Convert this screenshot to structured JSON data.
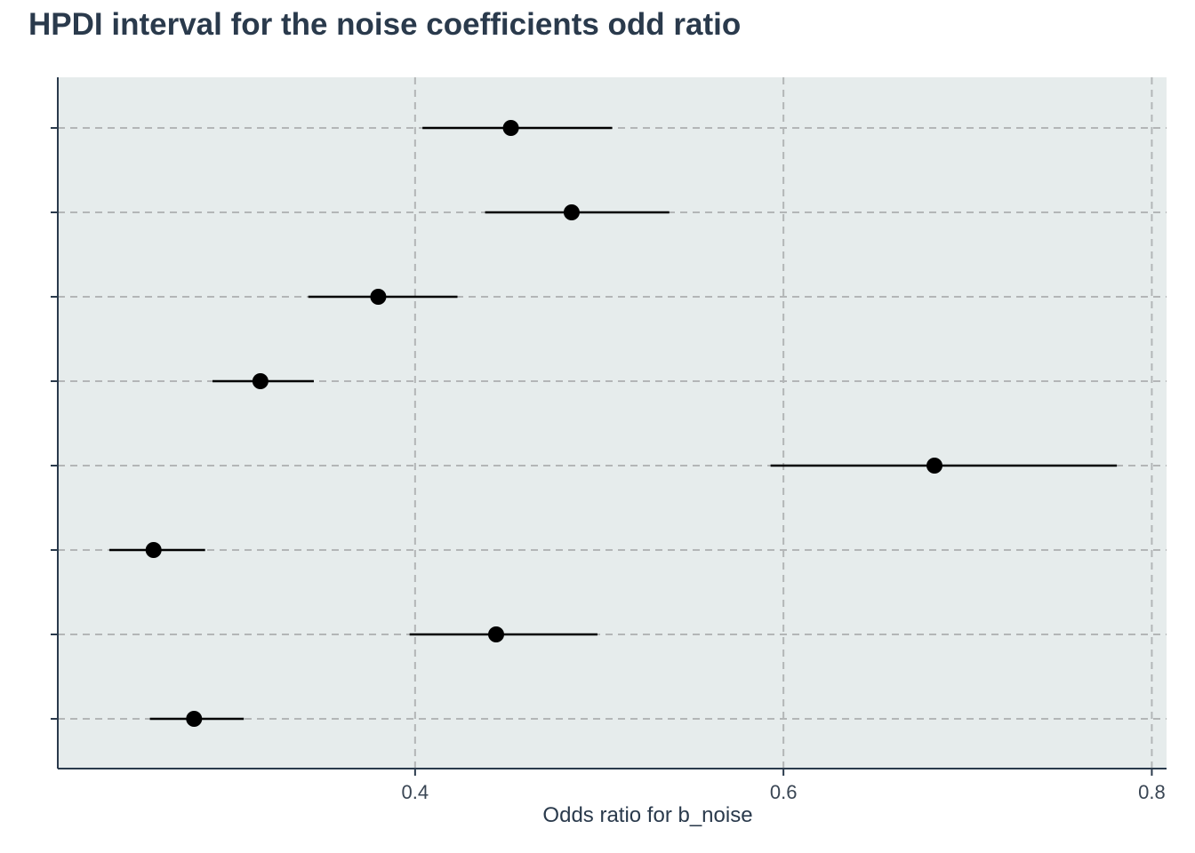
{
  "chart_data": {
    "type": "interval",
    "title": "HPDI interval for the noise coefficients odd ratio",
    "xlabel": "Odds ratio for b_noise",
    "ylabel": "",
    "xlim": [
      0.206,
      0.808
    ],
    "xticks": [
      0.4,
      0.6,
      0.8
    ],
    "xtick_labels": [
      "0.4",
      "0.6",
      "0.8"
    ],
    "grid": "dashed",
    "rows": [
      {
        "point": 0.452,
        "lower": 0.404,
        "upper": 0.507
      },
      {
        "point": 0.485,
        "lower": 0.438,
        "upper": 0.538
      },
      {
        "point": 0.38,
        "lower": 0.342,
        "upper": 0.423
      },
      {
        "point": 0.316,
        "lower": 0.29,
        "upper": 0.345
      },
      {
        "point": 0.682,
        "lower": 0.593,
        "upper": 0.781
      },
      {
        "point": 0.258,
        "lower": 0.234,
        "upper": 0.286
      },
      {
        "point": 0.444,
        "lower": 0.397,
        "upper": 0.499
      },
      {
        "point": 0.28,
        "lower": 0.256,
        "upper": 0.307
      }
    ]
  },
  "colors": {
    "panel_background": "#e6ecec",
    "grid": "#b3b6b7",
    "axis": "#2a3a4c",
    "mark": "#000000"
  }
}
